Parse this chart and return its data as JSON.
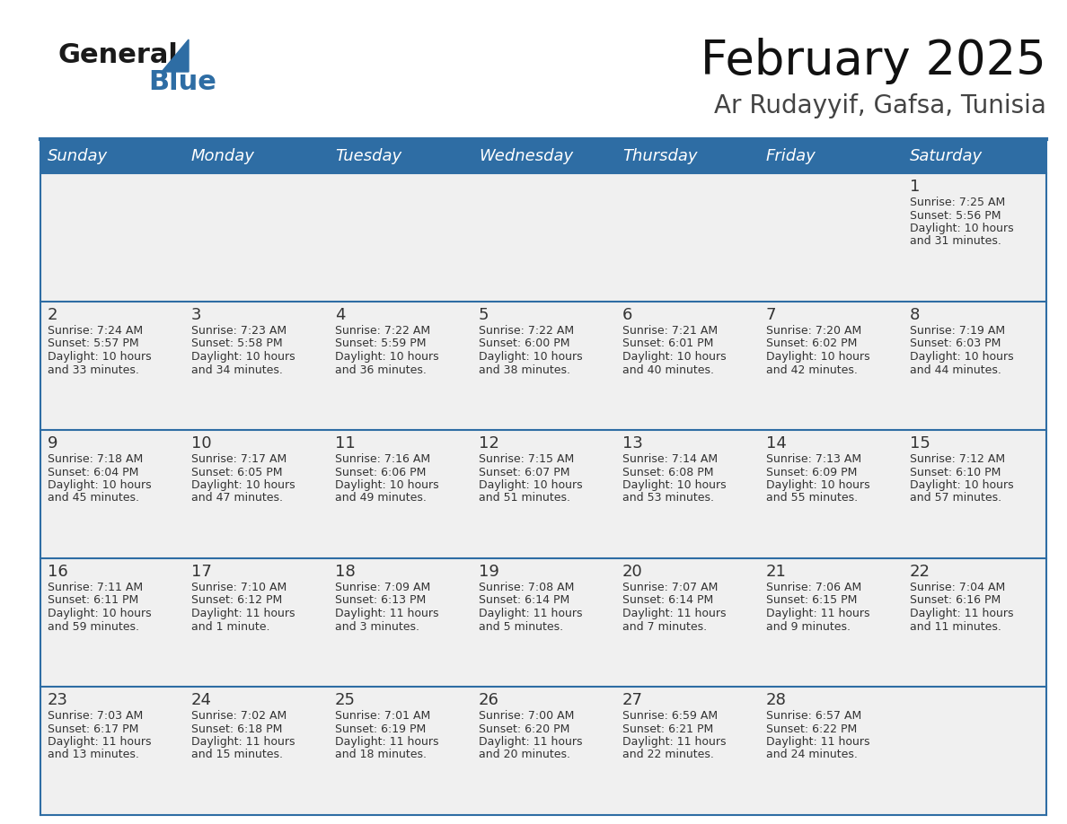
{
  "title": "February 2025",
  "subtitle": "Ar Rudayyif, Gafsa, Tunisia",
  "header_bg_color": "#2E6DA4",
  "header_text_color": "#FFFFFF",
  "cell_bg_color": "#F0F0F0",
  "day_number_color": "#333333",
  "text_color": "#333333",
  "line_color": "#2E6DA4",
  "days_of_week": [
    "Sunday",
    "Monday",
    "Tuesday",
    "Wednesday",
    "Thursday",
    "Friday",
    "Saturday"
  ],
  "calendar_data": [
    [
      null,
      null,
      null,
      null,
      null,
      null,
      1
    ],
    [
      2,
      3,
      4,
      5,
      6,
      7,
      8
    ],
    [
      9,
      10,
      11,
      12,
      13,
      14,
      15
    ],
    [
      16,
      17,
      18,
      19,
      20,
      21,
      22
    ],
    [
      23,
      24,
      25,
      26,
      27,
      28,
      null
    ]
  ],
  "sunrise_data": {
    "1": "7:25 AM",
    "2": "7:24 AM",
    "3": "7:23 AM",
    "4": "7:22 AM",
    "5": "7:22 AM",
    "6": "7:21 AM",
    "7": "7:20 AM",
    "8": "7:19 AM",
    "9": "7:18 AM",
    "10": "7:17 AM",
    "11": "7:16 AM",
    "12": "7:15 AM",
    "13": "7:14 AM",
    "14": "7:13 AM",
    "15": "7:12 AM",
    "16": "7:11 AM",
    "17": "7:10 AM",
    "18": "7:09 AM",
    "19": "7:08 AM",
    "20": "7:07 AM",
    "21": "7:06 AM",
    "22": "7:04 AM",
    "23": "7:03 AM",
    "24": "7:02 AM",
    "25": "7:01 AM",
    "26": "7:00 AM",
    "27": "6:59 AM",
    "28": "6:57 AM"
  },
  "sunset_data": {
    "1": "5:56 PM",
    "2": "5:57 PM",
    "3": "5:58 PM",
    "4": "5:59 PM",
    "5": "6:00 PM",
    "6": "6:01 PM",
    "7": "6:02 PM",
    "8": "6:03 PM",
    "9": "6:04 PM",
    "10": "6:05 PM",
    "11": "6:06 PM",
    "12": "6:07 PM",
    "13": "6:08 PM",
    "14": "6:09 PM",
    "15": "6:10 PM",
    "16": "6:11 PM",
    "17": "6:12 PM",
    "18": "6:13 PM",
    "19": "6:14 PM",
    "20": "6:14 PM",
    "21": "6:15 PM",
    "22": "6:16 PM",
    "23": "6:17 PM",
    "24": "6:18 PM",
    "25": "6:19 PM",
    "26": "6:20 PM",
    "27": "6:21 PM",
    "28": "6:22 PM"
  },
  "daylight_data": {
    "1": [
      "10 hours",
      "and 31 minutes."
    ],
    "2": [
      "10 hours",
      "and 33 minutes."
    ],
    "3": [
      "10 hours",
      "and 34 minutes."
    ],
    "4": [
      "10 hours",
      "and 36 minutes."
    ],
    "5": [
      "10 hours",
      "and 38 minutes."
    ],
    "6": [
      "10 hours",
      "and 40 minutes."
    ],
    "7": [
      "10 hours",
      "and 42 minutes."
    ],
    "8": [
      "10 hours",
      "and 44 minutes."
    ],
    "9": [
      "10 hours",
      "and 45 minutes."
    ],
    "10": [
      "10 hours",
      "and 47 minutes."
    ],
    "11": [
      "10 hours",
      "and 49 minutes."
    ],
    "12": [
      "10 hours",
      "and 51 minutes."
    ],
    "13": [
      "10 hours",
      "and 53 minutes."
    ],
    "14": [
      "10 hours",
      "and 55 minutes."
    ],
    "15": [
      "10 hours",
      "and 57 minutes."
    ],
    "16": [
      "10 hours",
      "and 59 minutes."
    ],
    "17": [
      "11 hours",
      "and 1 minute."
    ],
    "18": [
      "11 hours",
      "and 3 minutes."
    ],
    "19": [
      "11 hours",
      "and 5 minutes."
    ],
    "20": [
      "11 hours",
      "and 7 minutes."
    ],
    "21": [
      "11 hours",
      "and 9 minutes."
    ],
    "22": [
      "11 hours",
      "and 11 minutes."
    ],
    "23": [
      "11 hours",
      "and 13 minutes."
    ],
    "24": [
      "11 hours",
      "and 15 minutes."
    ],
    "25": [
      "11 hours",
      "and 18 minutes."
    ],
    "26": [
      "11 hours",
      "and 20 minutes."
    ],
    "27": [
      "11 hours",
      "and 22 minutes."
    ],
    "28": [
      "11 hours",
      "and 24 minutes."
    ]
  },
  "logo_general_color": "#1a1a1a",
  "logo_blue_color": "#2E6DA4",
  "logo_triangle_color": "#2E6DA4",
  "title_fontsize": 38,
  "subtitle_fontsize": 20,
  "dow_fontsize": 13,
  "day_num_fontsize": 13,
  "cell_text_fontsize": 9
}
